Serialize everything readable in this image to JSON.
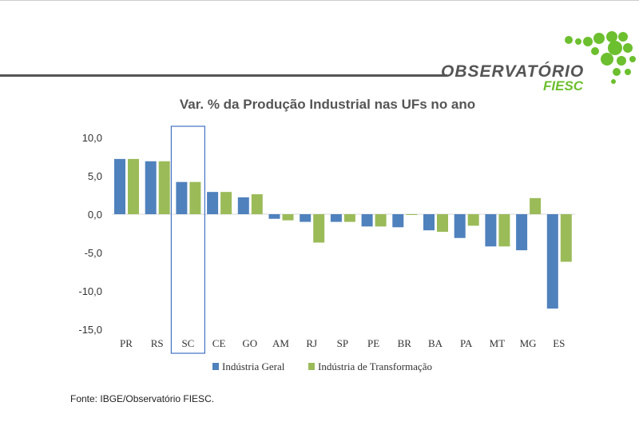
{
  "logo": {
    "name": "OBSERVATÓRIO",
    "sub": "FIESC"
  },
  "chart_data": {
    "type": "bar",
    "title": "Var. % da Produção Industrial nas UFs no ano",
    "categories": [
      "PR",
      "RS",
      "SC",
      "CE",
      "GO",
      "AM",
      "RJ",
      "SP",
      "PE",
      "BR",
      "BA",
      "PA",
      "MT",
      "MG",
      "ES"
    ],
    "series": [
      {
        "name": "Indústria Geral",
        "color": "#4f81bd",
        "values": [
          7.2,
          6.9,
          4.2,
          2.9,
          2.2,
          -0.6,
          -1.0,
          -1.0,
          -1.6,
          -1.7,
          -2.1,
          -3.1,
          -4.2,
          -4.7,
          -12.3
        ]
      },
      {
        "name": "Indústria de Transformação",
        "color": "#9bbb59",
        "values": [
          7.2,
          6.9,
          4.2,
          2.9,
          2.6,
          -0.8,
          -3.7,
          -1.0,
          -1.6,
          0.0,
          -2.3,
          -1.5,
          -4.2,
          2.1,
          -6.2
        ]
      }
    ],
    "yticks": [
      "10,0",
      "5,0",
      "0,0",
      "-5,0",
      "-10,0",
      "-15,0"
    ],
    "ytick_values": [
      10,
      5,
      0,
      -5,
      -10,
      -15
    ],
    "ylim": [
      -15,
      10
    ],
    "highlighted_category": "SC",
    "legend_position": "bottom",
    "grid": false
  },
  "source": "Fonte: IBGE/Observatório FIESC."
}
